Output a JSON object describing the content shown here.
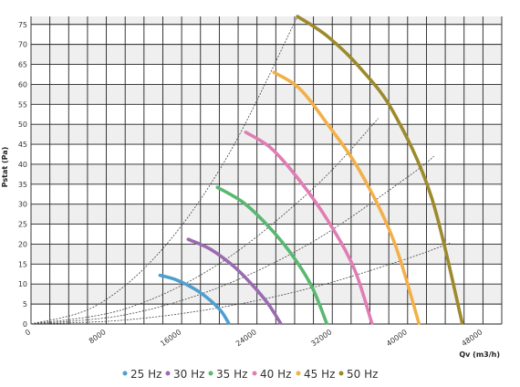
{
  "chart_data": {
    "type": "line",
    "title": "",
    "xlabel": "Qv (m3/h)",
    "ylabel": "Pstat (Pa)",
    "xlim": [
      0,
      50000
    ],
    "ylim": [
      0,
      77
    ],
    "x_ticks": [
      0,
      8000,
      16000,
      24000,
      32000,
      40000,
      48000
    ],
    "y_ticks": [
      0,
      5,
      10,
      15,
      20,
      25,
      30,
      35,
      40,
      45,
      50,
      55,
      60,
      65,
      70,
      75
    ],
    "x_tick_labels": [
      "0",
      "8000",
      "16000",
      "24000",
      "32000",
      "40000",
      "48000"
    ],
    "y_tick_labels": [
      "0",
      "5",
      "10",
      "15",
      "20",
      "25",
      "30",
      "35",
      "40",
      "45",
      "50",
      "55",
      "60",
      "65",
      "70",
      "75"
    ],
    "x_minor_step": 2000,
    "grid": true,
    "legend_position": "bottom",
    "series": [
      {
        "name": "25 Hz",
        "color": "#4e9fd0",
        "x": [
          13700,
          15500,
          17500,
          19000,
          20200,
          21000
        ],
        "y": [
          12.2,
          11.0,
          8.6,
          6.0,
          3.2,
          0.2
        ]
      },
      {
        "name": "30 Hz",
        "color": "#9b6bb0",
        "x": [
          16700,
          19000,
          21500,
          23500,
          25200,
          26500
        ],
        "y": [
          21.2,
          18.8,
          14.5,
          9.8,
          5.0,
          0.2
        ]
      },
      {
        "name": "35 Hz",
        "color": "#5bb870",
        "x": [
          19800,
          22500,
          25000,
          27500,
          29800,
          31400
        ],
        "y": [
          34.2,
          30.5,
          25.0,
          18.0,
          9.5,
          0.2
        ]
      },
      {
        "name": "40 Hz",
        "color": "#e07db5",
        "x": [
          22800,
          25500,
          28500,
          31500,
          34300,
          36200
        ],
        "y": [
          48.0,
          44.0,
          36.0,
          26.0,
          14.0,
          0.2
        ]
      },
      {
        "name": "45 Hz",
        "color": "#f2b04a",
        "x": [
          25800,
          28500,
          31500,
          35000,
          38500,
          41200
        ],
        "y": [
          63.0,
          59.0,
          50.0,
          38.0,
          21.0,
          0.2
        ]
      },
      {
        "name": "50 Hz",
        "color": "#9c8a2c",
        "x": [
          28300,
          31500,
          35000,
          38500,
          42500,
          45800
        ],
        "y": [
          77.0,
          72.0,
          64.0,
          53.0,
          32.0,
          0.2
        ]
      }
    ],
    "system_curves": [
      {
        "x": [
          0,
          7000,
          14000,
          21000,
          28300
        ],
        "y": [
          0,
          4.7,
          18.9,
          42.5,
          77.0
        ]
      },
      {
        "x": [
          0,
          10000,
          20000,
          30000,
          36900
        ],
        "y": [
          0,
          3.8,
          15.1,
          34.0,
          51.5
        ]
      },
      {
        "x": [
          0,
          10000,
          20000,
          30000,
          40000,
          42800
        ],
        "y": [
          0,
          2.3,
          9.2,
          20.7,
          36.8,
          42.0
        ]
      },
      {
        "x": [
          0,
          10000,
          20000,
          30000,
          40000,
          44500
        ],
        "y": [
          0,
          1.0,
          4.1,
          9.2,
          16.4,
          20.3
        ]
      }
    ]
  }
}
